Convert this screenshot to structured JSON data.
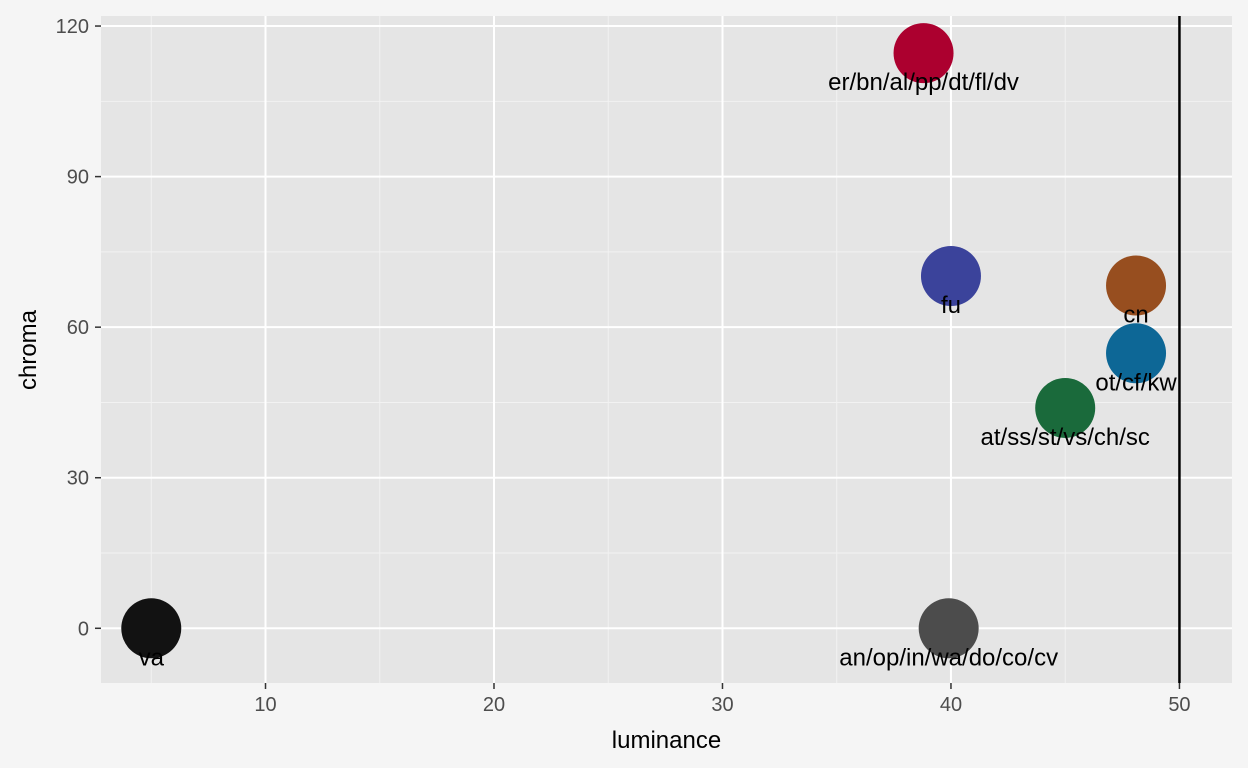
{
  "chart_data": {
    "type": "scatter",
    "title": "",
    "xlabel": "luminance",
    "ylabel": "chroma",
    "xlim": [
      2.8,
      52.3
    ],
    "ylim": [
      -10.9,
      122
    ],
    "x_ticks": [
      10,
      20,
      30,
      40,
      50
    ],
    "y_ticks": [
      0,
      30,
      60,
      90,
      120
    ],
    "grid": true,
    "legend": "none",
    "reference_line": {
      "orientation": "vertical",
      "x": 50,
      "color": "#000000"
    },
    "points": [
      {
        "x": 38.8,
        "y": 114.6,
        "label": "er/bn/al/pp/dt/fl/dv",
        "color": "#ac002f"
      },
      {
        "x": 40.0,
        "y": 70.2,
        "label": "fu",
        "color": "#3b439b"
      },
      {
        "x": 48.1,
        "y": 68.3,
        "label": "cn",
        "color": "#974e1f"
      },
      {
        "x": 48.1,
        "y": 54.8,
        "label": "ot/cf/kw",
        "color": "#0d6796"
      },
      {
        "x": 45.0,
        "y": 43.9,
        "label": "at/ss/st/vs/ch/sc",
        "color": "#1a6a3b"
      },
      {
        "x": 5.0,
        "y": 0.0,
        "label": "va",
        "color": "#121212"
      },
      {
        "x": 39.9,
        "y": 0.0,
        "label": "an/op/in/wa/do/co/cv",
        "color": "#4c4c4c"
      }
    ]
  }
}
